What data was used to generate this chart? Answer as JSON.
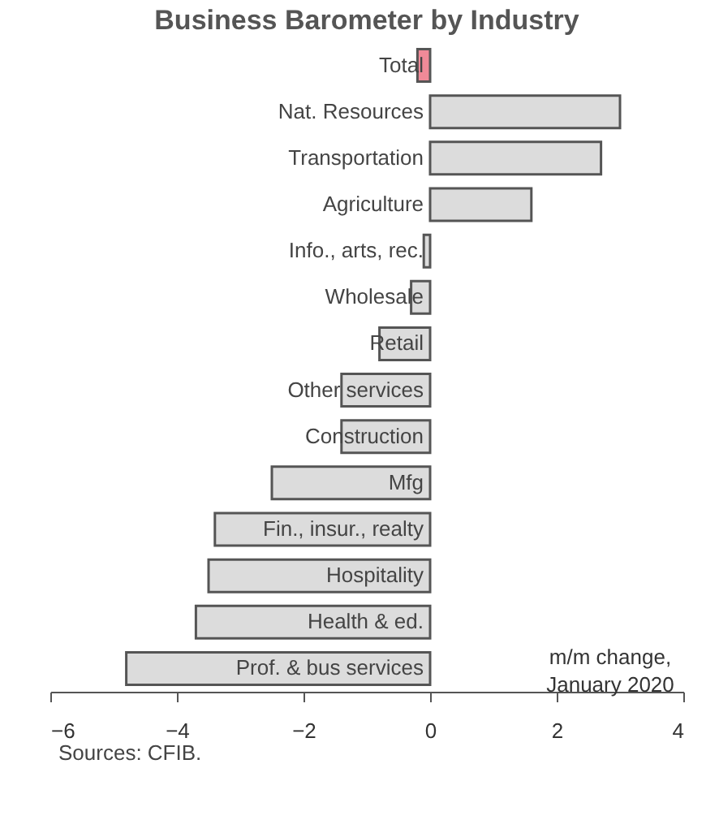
{
  "chart_data": {
    "type": "bar",
    "orientation": "horizontal",
    "title": "Business Barometer by Industry",
    "categories": [
      "Total",
      "Nat. Resources",
      "Transportation",
      "Agriculture",
      "Info., arts, rec.",
      "Wholesale",
      "Retail",
      "Other services",
      "Construction",
      "Mfg",
      "Fin., insur., realty",
      "Hospitality",
      "Health & ed.",
      "Prof. & bus services"
    ],
    "values": [
      -0.2,
      3.0,
      2.7,
      1.6,
      -0.1,
      -0.3,
      -0.8,
      -1.4,
      -1.4,
      -2.5,
      -3.4,
      -3.5,
      -3.7,
      -4.8
    ],
    "colors": [
      "#f08a98",
      "#dcdcdc",
      "#dcdcdc",
      "#dcdcdc",
      "#dcdcdc",
      "#dcdcdc",
      "#dcdcdc",
      "#dcdcdc",
      "#dcdcdc",
      "#dcdcdc",
      "#dcdcdc",
      "#dcdcdc",
      "#dcdcdc",
      "#dcdcdc"
    ],
    "xlim": [
      -6,
      4
    ],
    "xticks": [
      -6,
      -4,
      -2,
      0,
      2,
      4
    ],
    "grid": false,
    "legend": false,
    "annotations": [
      "m/m change,\nJanuary 2020",
      "Sources: CFIB."
    ]
  }
}
